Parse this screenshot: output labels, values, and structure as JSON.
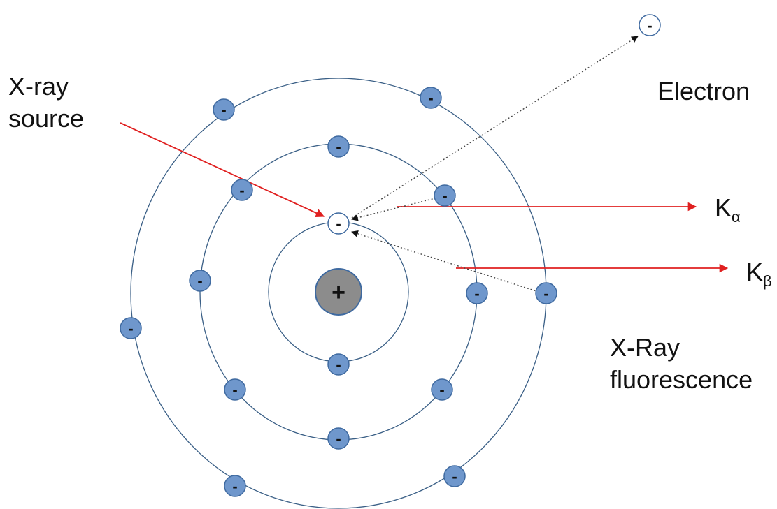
{
  "labels": {
    "xray_source_line1": "X-ray",
    "xray_source_line2": "source",
    "electron": "Electron",
    "k_alpha_main": "K",
    "k_alpha_sub": "α",
    "k_beta_main": "K",
    "k_beta_sub": "β",
    "fluorescence_line1": "X-Ray",
    "fluorescence_line2": "fluorescence"
  },
  "symbols": {
    "electron_sign": "-",
    "nucleus_sign": "+"
  },
  "colors": {
    "orbit": "#3a5f86",
    "electron_fill": "#6f97cc",
    "electron_stroke": "#3f6aa0",
    "nucleus_fill": "#8c8c8c",
    "nucleus_stroke": "#3f6aa0",
    "arrow_red": "#e02020",
    "arrow_dotted": "#444444",
    "vacancy_fill": "#ffffff"
  }
}
